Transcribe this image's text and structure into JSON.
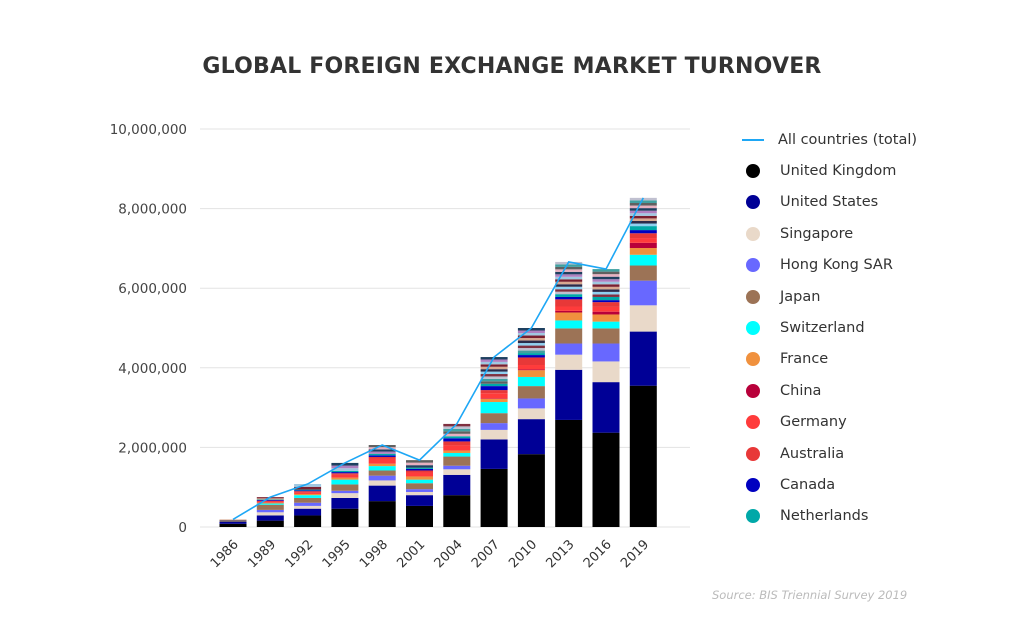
{
  "chart_data": {
    "type": "bar",
    "stacked": true,
    "title": "GLOBAL FOREIGN EXCHANGE MARKET TURNOVER",
    "source": "Source: BIS Triennial Survey 2019",
    "categories": [
      "1986",
      "1989",
      "1992",
      "1995",
      "1998",
      "2001",
      "2004",
      "2007",
      "2010",
      "2013",
      "2016",
      "2019"
    ],
    "ylim": [
      0,
      10000000
    ],
    "yticks": [
      "0",
      "2,000,000",
      "4,000,000",
      "6,000,000",
      "8,000,000",
      "10,000,000"
    ],
    "ytick_values": [
      0,
      2000000,
      4000000,
      6000000,
      8000000,
      10000000
    ],
    "grid": true,
    "legend_position": "right",
    "line_series": {
      "name": "All countries (total)",
      "color": "#1ea7f5",
      "values": [
        190000,
        750000,
        1080000,
        1610000,
        2060000,
        1680000,
        2590000,
        4270000,
        5000000,
        6660000,
        6480000,
        8270000
      ]
    },
    "series": [
      {
        "name": "United Kingdom",
        "color": "#000000",
        "values": [
          80000,
          160000,
          290000,
          460000,
          650000,
          530000,
          800000,
          1460000,
          1830000,
          2690000,
          2370000,
          3550000
        ]
      },
      {
        "name": "United States",
        "color": "#000096",
        "values": [
          50000,
          130000,
          170000,
          270000,
          390000,
          270000,
          510000,
          740000,
          880000,
          1260000,
          1270000,
          1360000
        ]
      },
      {
        "name": "Singapore",
        "color": "#e9d9c9",
        "values": [
          0,
          80000,
          70000,
          120000,
          130000,
          80000,
          140000,
          240000,
          270000,
          380000,
          520000,
          660000
        ]
      },
      {
        "name": "Hong Kong SAR",
        "color": "#6868ff",
        "values": [
          0,
          60000,
          80000,
          60000,
          120000,
          70000,
          90000,
          170000,
          250000,
          280000,
          450000,
          620000
        ]
      },
      {
        "name": "Japan",
        "color": "#9c7356",
        "values": [
          10000,
          130000,
          120000,
          160000,
          130000,
          150000,
          230000,
          250000,
          310000,
          380000,
          380000,
          380000
        ]
      },
      {
        "name": "Switzerland",
        "color": "#00ffff",
        "values": [
          0,
          30000,
          70000,
          120000,
          110000,
          90000,
          90000,
          280000,
          230000,
          200000,
          170000,
          270000
        ]
      },
      {
        "name": "France",
        "color": "#f0913e",
        "values": [
          0,
          20000,
          30000,
          50000,
          60000,
          80000,
          60000,
          80000,
          170000,
          200000,
          180000,
          170000
        ]
      },
      {
        "name": "China",
        "color": "#b8003a",
        "values": [
          0,
          0,
          0,
          0,
          0,
          0,
          0,
          10000,
          20000,
          40000,
          70000,
          130000
        ]
      },
      {
        "name": "Germany",
        "color": "#ff3b3b",
        "values": [
          0,
          30000,
          40000,
          70000,
          120000,
          100000,
          130000,
          130000,
          110000,
          110000,
          120000,
          120000
        ]
      },
      {
        "name": "Australia",
        "color": "#e83838",
        "values": [
          0,
          20000,
          30000,
          40000,
          50000,
          50000,
          100000,
          80000,
          190000,
          180000,
          120000,
          120000
        ]
      },
      {
        "name": "Canada",
        "color": "#0000c0",
        "values": [
          0,
          20000,
          20000,
          30000,
          40000,
          40000,
          80000,
          100000,
          60000,
          60000,
          50000,
          80000
        ]
      },
      {
        "name": "Netherlands",
        "color": "#00a8a8",
        "values": [
          0,
          10000,
          20000,
          30000,
          40000,
          30000,
          50000,
          60000,
          50000,
          70000,
          80000,
          100000
        ]
      }
    ]
  }
}
